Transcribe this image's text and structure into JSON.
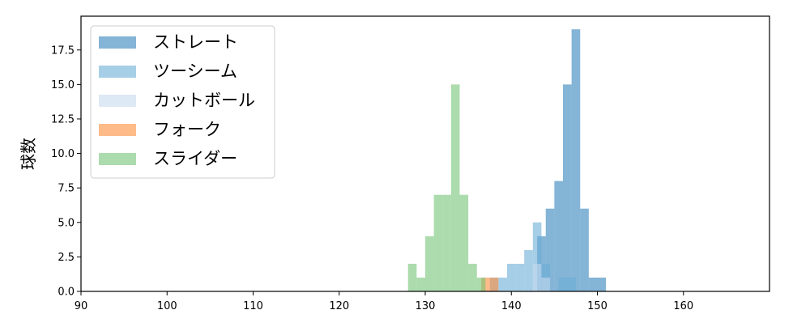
{
  "chart_data": {
    "type": "histogram",
    "title": "",
    "xlabel": "",
    "ylabel": "球数",
    "xlim": [
      90,
      170
    ],
    "ylim": [
      0,
      19.95
    ],
    "xticks": [
      90,
      100,
      110,
      120,
      130,
      140,
      150,
      160
    ],
    "yticks": [
      0.0,
      2.5,
      5.0,
      7.5,
      10.0,
      12.5,
      15.0,
      17.5
    ],
    "ytick_labels": [
      "0.0",
      "2.5",
      "5.0",
      "7.5",
      "10.0",
      "12.5",
      "15.0",
      "17.5"
    ],
    "grid": false,
    "legend_position": "top-left",
    "bin_width": 1.0,
    "series": [
      {
        "name": "ストレート",
        "color": "#1f77b4",
        "alpha": 0.55,
        "bins": [
          {
            "x0": 143,
            "x1": 144,
            "count": 4
          },
          {
            "x0": 144,
            "x1": 145,
            "count": 6
          },
          {
            "x0": 145,
            "x1": 146,
            "count": 8
          },
          {
            "x0": 146,
            "x1": 147,
            "count": 15
          },
          {
            "x0": 147,
            "x1": 148,
            "count": 19
          },
          {
            "x0": 148,
            "x1": 149,
            "count": 6
          },
          {
            "x0": 149,
            "x1": 150,
            "count": 1
          },
          {
            "x0": 150,
            "x1": 151,
            "count": 1
          }
        ]
      },
      {
        "name": "ツーシーム",
        "color": "#6baed6",
        "alpha": 0.6,
        "bins": [
          {
            "x0": 137.5,
            "x1": 138.5,
            "count": 1
          },
          {
            "x0": 138.5,
            "x1": 139.5,
            "count": 1
          },
          {
            "x0": 139.5,
            "x1": 140.5,
            "count": 2
          },
          {
            "x0": 140.5,
            "x1": 141.5,
            "count": 2
          },
          {
            "x0": 141.5,
            "x1": 142.5,
            "count": 3
          },
          {
            "x0": 142.5,
            "x1": 143.5,
            "count": 5
          },
          {
            "x0": 143.5,
            "x1": 144.5,
            "count": 2
          },
          {
            "x0": 145.5,
            "x1": 146.5,
            "count": 1
          },
          {
            "x0": 146.5,
            "x1": 147.5,
            "count": 1
          }
        ]
      },
      {
        "name": "カットボール",
        "color": "#c6dbef",
        "alpha": 0.6,
        "bins": [
          {
            "x0": 142.5,
            "x1": 143.5,
            "count": 2
          },
          {
            "x0": 143.5,
            "x1": 144.5,
            "count": 1
          }
        ]
      },
      {
        "name": "フォーク",
        "color": "#fd8d3c",
        "alpha": 0.6,
        "bins": [
          {
            "x0": 136.5,
            "x1": 137.5,
            "count": 1
          },
          {
            "x0": 137.5,
            "x1": 138.5,
            "count": 1
          }
        ]
      },
      {
        "name": "スライダー",
        "color": "#74c476",
        "alpha": 0.6,
        "bins": [
          {
            "x0": 128,
            "x1": 129,
            "count": 2
          },
          {
            "x0": 129,
            "x1": 130,
            "count": 1
          },
          {
            "x0": 130,
            "x1": 131,
            "count": 4
          },
          {
            "x0": 131,
            "x1": 132,
            "count": 7
          },
          {
            "x0": 132,
            "x1": 133,
            "count": 7
          },
          {
            "x0": 133,
            "x1": 134,
            "count": 15
          },
          {
            "x0": 134,
            "x1": 135,
            "count": 7
          },
          {
            "x0": 135,
            "x1": 136,
            "count": 2
          },
          {
            "x0": 136,
            "x1": 137,
            "count": 1
          }
        ]
      }
    ]
  }
}
